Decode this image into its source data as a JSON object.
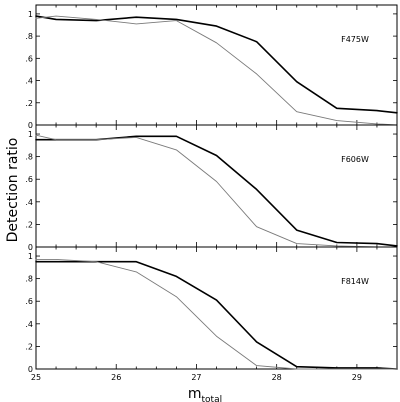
{
  "chart_data": {
    "type": "line",
    "ylabel": "Detection ratio",
    "xlabel_main": "m",
    "xlabel_sub": "total",
    "xlim": [
      25,
      29.5
    ],
    "ylim": [
      0,
      1.08
    ],
    "x_ticks": [
      25,
      26,
      27,
      28,
      29
    ],
    "y_ticks": [
      0,
      0.2,
      0.4,
      0.6,
      0.8,
      1
    ],
    "y_tick_labels": [
      "0",
      ".2",
      ".4",
      ".6",
      ".8",
      "1"
    ],
    "line_colors": {
      "thick": "#000000",
      "thin": "#7a7a7a"
    },
    "panels": [
      {
        "label": "F475W",
        "series": [
          {
            "style": "thick",
            "x": [
              25,
              25.25,
              25.75,
              26.25,
              26.75,
              27.25,
              27.75,
              28.25,
              28.75,
              29.25,
              29.5
            ],
            "values": [
              0.98,
              0.95,
              0.94,
              0.97,
              0.95,
              0.89,
              0.75,
              0.39,
              0.15,
              0.13,
              0.11
            ]
          },
          {
            "style": "thin",
            "x": [
              25,
              25.25,
              25.75,
              26.25,
              26.75,
              27.25,
              27.75,
              28.25,
              28.75,
              29.25,
              29.5
            ],
            "values": [
              0.96,
              0.98,
              0.95,
              0.91,
              0.94,
              0.74,
              0.46,
              0.12,
              0.04,
              0.01,
              0.0
            ]
          }
        ]
      },
      {
        "label": "F606W",
        "series": [
          {
            "style": "thick",
            "x": [
              25,
              25.25,
              25.75,
              26.25,
              26.75,
              27.25,
              27.75,
              28.25,
              28.75,
              29.25,
              29.5
            ],
            "values": [
              0.95,
              0.95,
              0.95,
              0.98,
              0.98,
              0.81,
              0.51,
              0.15,
              0.04,
              0.03,
              0.01
            ]
          },
          {
            "style": "thin",
            "x": [
              25,
              25.25,
              25.75,
              26.25,
              26.75,
              27.25,
              27.75,
              28.25,
              28.75,
              29.25,
              29.5
            ],
            "values": [
              0.99,
              0.95,
              0.95,
              0.97,
              0.86,
              0.58,
              0.18,
              0.03,
              0.01,
              0.0,
              0.0
            ]
          }
        ]
      },
      {
        "label": "F814W",
        "series": [
          {
            "style": "thick",
            "x": [
              25,
              25.25,
              25.75,
              26.25,
              26.75,
              27.25,
              27.75,
              28.25,
              28.75,
              29.25,
              29.5
            ],
            "values": [
              0.95,
              0.95,
              0.95,
              0.95,
              0.82,
              0.61,
              0.24,
              0.02,
              0.01,
              0.01,
              0.0
            ]
          },
          {
            "style": "thin",
            "x": [
              25,
              25.25,
              25.75,
              26.25,
              26.75,
              27.25,
              27.75,
              28.25,
              28.75,
              29.25,
              29.5
            ],
            "values": [
              0.97,
              0.97,
              0.95,
              0.86,
              0.64,
              0.29,
              0.03,
              0.0,
              0.0,
              0.0,
              0.0
            ]
          }
        ]
      }
    ]
  }
}
